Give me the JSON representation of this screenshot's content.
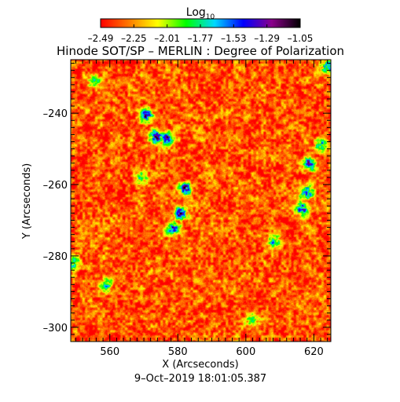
{
  "chart_data": {
    "type": "heatmap",
    "title": "Hinode SOT/SP – MERLIN : Degree of Polarization",
    "xlabel": "X (Arcseconds)",
    "ylabel": "Y (Arcseconds)",
    "date": "9–Oct–2019 18:01:05.387",
    "xlim": [
      548.5,
      625
    ],
    "ylim": [
      -304,
      -225
    ],
    "xticks": [
      560,
      580,
      600,
      620
    ],
    "yticks": [
      -300,
      -280,
      -260,
      -240
    ],
    "x_tick_labels": [
      "560",
      "580",
      "600",
      "620"
    ],
    "y_tick_labels": [
      "–300",
      "–280",
      "–260",
      "–240"
    ],
    "colorbar": {
      "title_base": "Log",
      "title_sub": "10",
      "range": [
        -2.49,
        -1.05
      ],
      "tick_labels": [
        "–2.49",
        "–2.25",
        "–2.01",
        "–1.77",
        "–1.53",
        "–1.29",
        "–1.05"
      ],
      "colors": [
        "#ff0000",
        "#ff7a00",
        "#ffff00",
        "#00ff00",
        "#00d8ff",
        "#0000ff",
        "#8a008a",
        "#000000"
      ]
    },
    "background_log_level": -2.35,
    "features": [
      {
        "name": "patch-a",
        "x": 570.5,
        "y": -240.5,
        "peak": -1.35
      },
      {
        "name": "patch-b",
        "x": 573.5,
        "y": -246.5,
        "peak": -1.2
      },
      {
        "name": "patch-c",
        "x": 576.5,
        "y": -247.0,
        "peak": -1.25
      },
      {
        "name": "patch-d",
        "x": 582.0,
        "y": -261.0,
        "peak": -1.3
      },
      {
        "name": "patch-e",
        "x": 580.5,
        "y": -268.0,
        "peak": -1.25
      },
      {
        "name": "patch-f",
        "x": 578.5,
        "y": -272.0,
        "peak": -1.4
      },
      {
        "name": "patch-g",
        "x": 569.0,
        "y": -258.0,
        "peak": -1.7
      },
      {
        "name": "patch-h",
        "x": 618.5,
        "y": -254.0,
        "peak": -1.4
      },
      {
        "name": "patch-i",
        "x": 618.0,
        "y": -262.0,
        "peak": -1.3
      },
      {
        "name": "patch-j",
        "x": 616.5,
        "y": -266.5,
        "peak": -1.4
      },
      {
        "name": "patch-k",
        "x": 622.0,
        "y": -249.0,
        "peak": -1.55
      },
      {
        "name": "patch-l",
        "x": 555.5,
        "y": -231.0,
        "peak": -1.8
      },
      {
        "name": "patch-m",
        "x": 624.0,
        "y": -227.0,
        "peak": -1.5
      },
      {
        "name": "patch-n",
        "x": 549.5,
        "y": -282.0,
        "peak": -1.65
      },
      {
        "name": "patch-o",
        "x": 559.0,
        "y": -288.0,
        "peak": -1.75
      },
      {
        "name": "patch-p",
        "x": 608.5,
        "y": -276.0,
        "peak": -1.7
      },
      {
        "name": "patch-q",
        "x": 602.0,
        "y": -298.0,
        "peak": -1.85
      }
    ]
  }
}
